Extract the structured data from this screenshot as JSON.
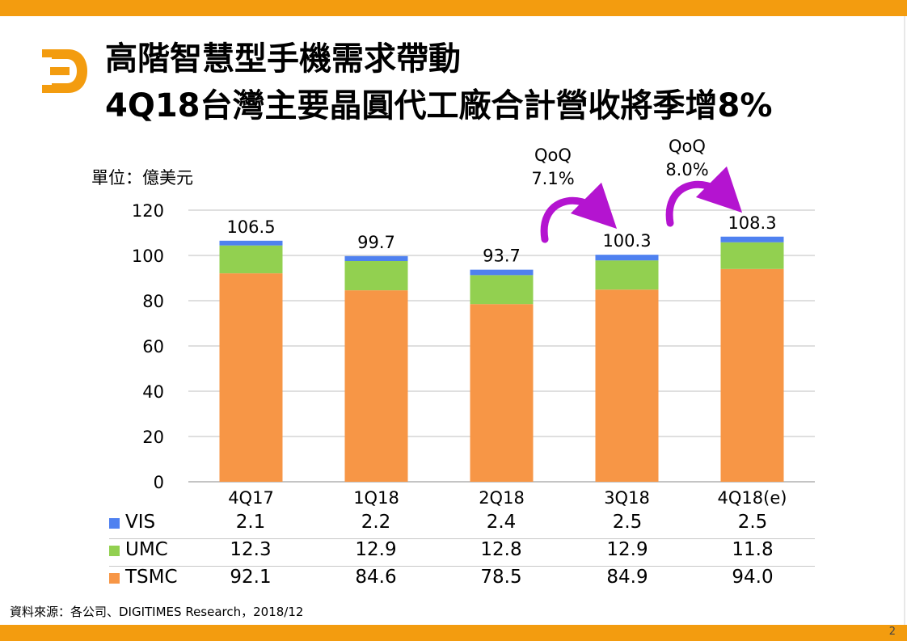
{
  "slide": {
    "title_line1": "高階智慧型手機需求帶動",
    "title_line2": "4Q18台灣主要晶圓代工廠合計營收將季增8%",
    "unit_label": "單位：億美元",
    "source": "資料來源：各公司、DIGITIMES Research，2018/12",
    "page_number": "2",
    "brand_color": "#f39c0f",
    "logo_icon": "digitimes-d-logo-icon"
  },
  "annotations": [
    {
      "label": "QoQ",
      "value": "7.1%",
      "from": "2Q18",
      "to": "3Q18"
    },
    {
      "label": "QoQ",
      "value": "8.0%",
      "from": "3Q18",
      "to": "4Q18(e)"
    }
  ],
  "chart_data": {
    "type": "bar",
    "stacked": true,
    "categories": [
      "4Q17",
      "1Q18",
      "2Q18",
      "3Q18",
      "4Q18(e)"
    ],
    "series": [
      {
        "name": "TSMC",
        "color": "#f79646",
        "values": [
          92.1,
          84.6,
          78.5,
          84.9,
          94.0
        ]
      },
      {
        "name": "UMC",
        "color": "#92d050",
        "values": [
          12.3,
          12.9,
          12.8,
          12.9,
          11.8
        ]
      },
      {
        "name": "VIS",
        "color": "#4f81f0",
        "values": [
          2.1,
          2.2,
          2.4,
          2.5,
          2.5
        ]
      }
    ],
    "totals": [
      "106.5",
      "99.7",
      "93.7",
      "100.3",
      "108.3"
    ],
    "table_rows": [
      {
        "name": "VIS",
        "color": "#4f81f0",
        "values": [
          "2.1",
          "2.2",
          "2.4",
          "2.5",
          "2.5"
        ]
      },
      {
        "name": "UMC",
        "color": "#92d050",
        "values": [
          "12.3",
          "12.9",
          "12.8",
          "12.9",
          "11.8"
        ]
      },
      {
        "name": "TSMC",
        "color": "#f79646",
        "values": [
          "92.1",
          "84.6",
          "78.5",
          "84.9",
          "94.0"
        ]
      }
    ],
    "y_ticks": [
      "0",
      "20",
      "40",
      "60",
      "80",
      "100",
      "120"
    ],
    "ylim": [
      0,
      120
    ],
    "grid": true,
    "legend": "data-table-below"
  }
}
